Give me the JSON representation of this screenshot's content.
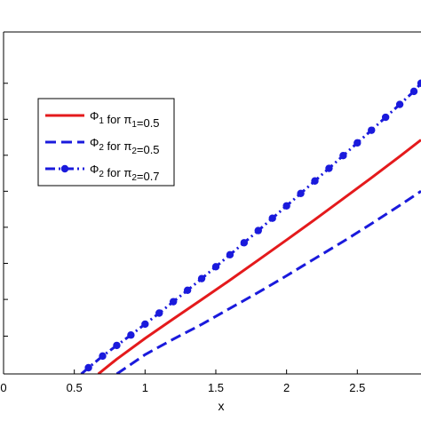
{
  "chart_data": {
    "type": "line",
    "xlabel": "x",
    "ylabel": "",
    "xlim": [
      0,
      2.95
    ],
    "ylim": [
      0,
      1
    ],
    "xticks": [
      0,
      0.5,
      1,
      1.5,
      2,
      2.5
    ],
    "xtick_labels": [
      "0",
      "0.5",
      "1",
      "1.5",
      "2",
      "2.5"
    ],
    "yticks": [
      0,
      0.1105,
      0.2179,
      0.3234,
      0.4289,
      0.5342,
      0.6395,
      0.7447,
      0.85
    ],
    "grid": false,
    "legend_position": "upper-left",
    "series": [
      {
        "name": "Φ1 for π1=0.5",
        "legend_parts": [
          [
            "Φ",
            ""
          ],
          [
            "1",
            "sub"
          ],
          [
            " for π",
            ""
          ],
          [
            "1",
            "sub"
          ],
          [
            "=0.5",
            ""
          ]
        ],
        "color": "#e41a1c",
        "style": "solid",
        "marker": "none",
        "x": [
          0.67,
          0.8,
          1.0,
          1.2,
          1.4,
          1.6,
          1.8,
          2.0,
          2.2,
          2.4,
          2.6,
          2.8,
          2.95
        ],
        "y": [
          0.0,
          0.0434,
          0.1038,
          0.1611,
          0.2174,
          0.2743,
          0.333,
          0.3917,
          0.4514,
          0.5124,
          0.5736,
          0.6362,
          0.6843
        ]
      },
      {
        "name": "Φ2 for π2=0.5",
        "legend_parts": [
          [
            "Φ",
            ""
          ],
          [
            "2",
            "sub"
          ],
          [
            " for π",
            ""
          ],
          [
            "2",
            "sub"
          ],
          [
            "=0.5",
            ""
          ]
        ],
        "color": "#1a1adc",
        "style": "dashed",
        "marker": "none",
        "x": [
          0.8,
          1.0,
          1.2,
          1.4,
          1.6,
          1.8,
          2.0,
          2.2,
          2.4,
          2.6,
          2.8,
          2.95
        ],
        "y": [
          0.0,
          0.0564,
          0.1018,
          0.145,
          0.1917,
          0.2385,
          0.2869,
          0.3374,
          0.3874,
          0.4393,
          0.4931,
          0.5342
        ]
      },
      {
        "name": "Φ2 for π2=0.7",
        "legend_parts": [
          [
            "Φ",
            ""
          ],
          [
            "2",
            "sub"
          ],
          [
            " for π",
            ""
          ],
          [
            "2",
            "sub"
          ],
          [
            "=0.7",
            ""
          ]
        ],
        "color": "#1a1adc",
        "style": "dashdot",
        "marker": "circle",
        "x": [
          0.55,
          0.6,
          0.7,
          0.8,
          0.9,
          1.0,
          1.1,
          1.2,
          1.3,
          1.4,
          1.5,
          1.6,
          1.7,
          1.8,
          1.9,
          2.0,
          2.1,
          2.2,
          2.3,
          2.4,
          2.5,
          2.6,
          2.7,
          2.8,
          2.9,
          2.95
        ],
        "y": [
          0.0,
          0.0182,
          0.0523,
          0.0834,
          0.1137,
          0.1456,
          0.1779,
          0.2113,
          0.2447,
          0.2788,
          0.3134,
          0.3485,
          0.3837,
          0.4192,
          0.4553,
          0.4915,
          0.5278,
          0.5643,
          0.6012,
          0.6384,
          0.6757,
          0.7126,
          0.7506,
          0.7882,
          0.8263,
          0.85
        ]
      }
    ]
  }
}
